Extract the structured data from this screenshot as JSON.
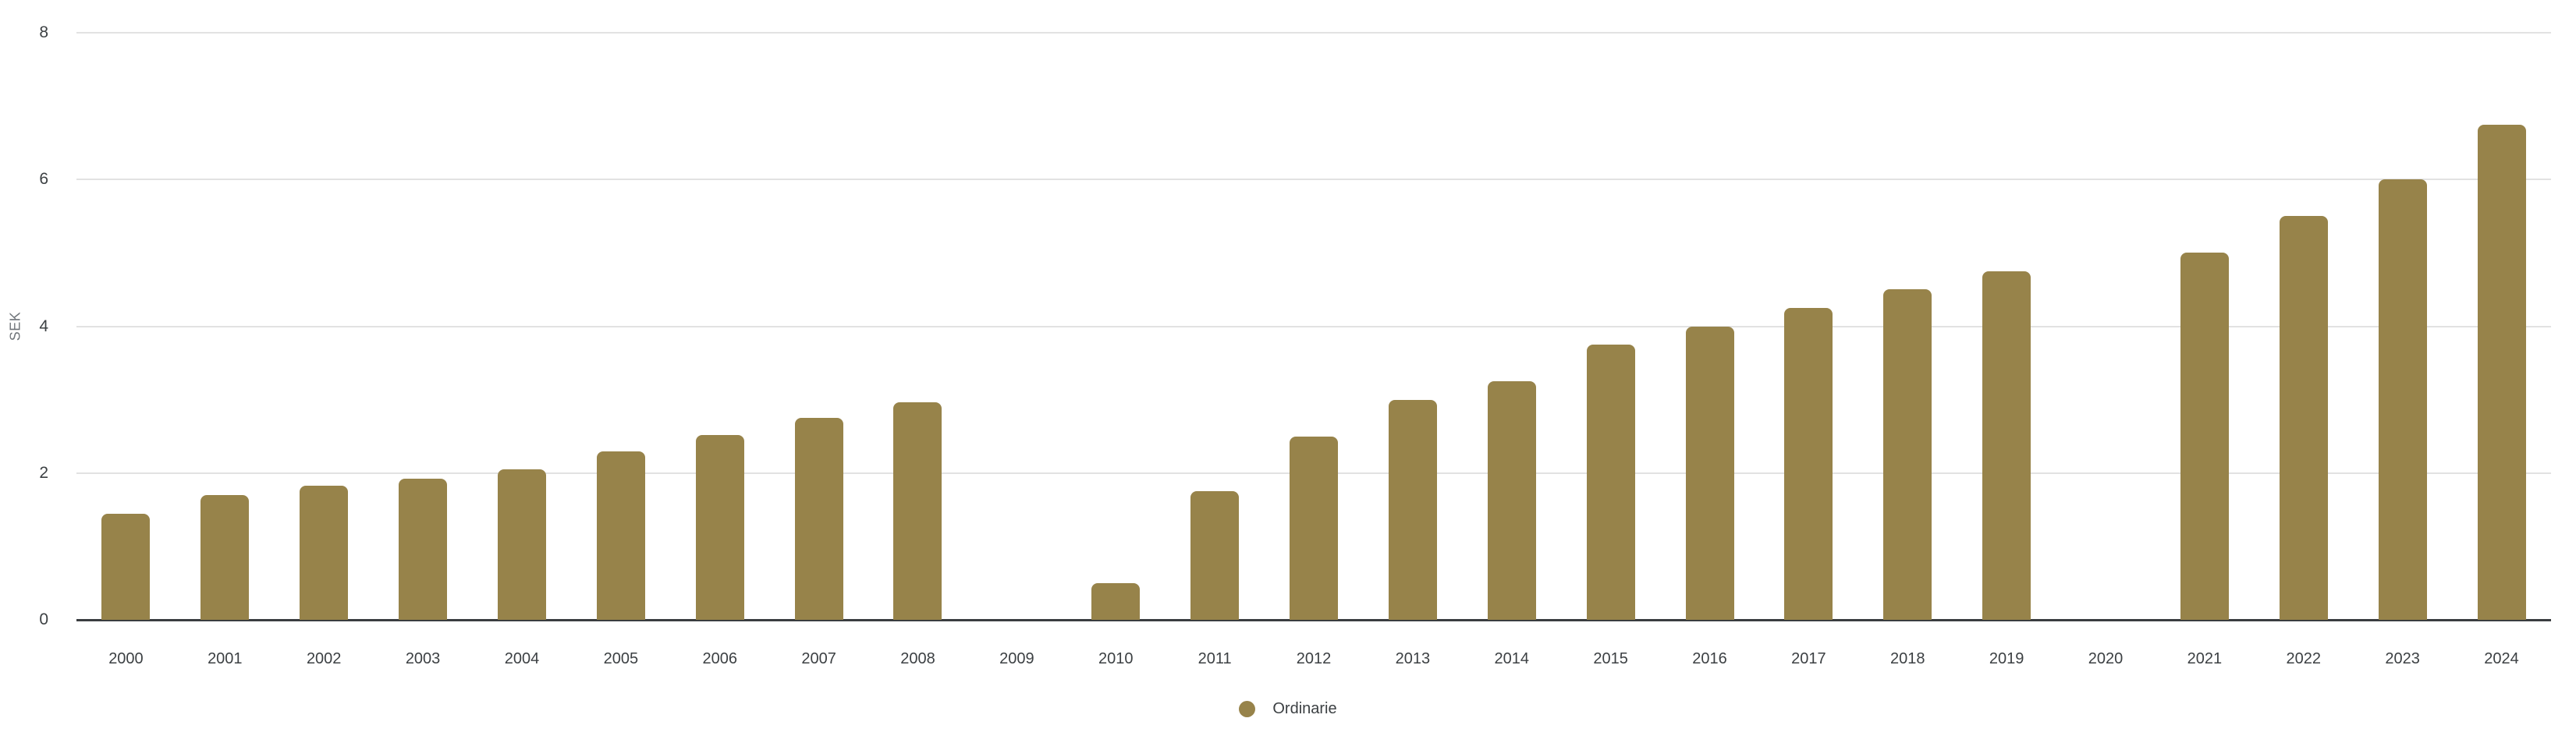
{
  "chart": {
    "y_axis_label": "SEK",
    "legend": {
      "label": "Ordinarie"
    }
  },
  "colors": {
    "bar": "#97834A",
    "gridline": "#e2e2e2",
    "axis_line": "#3a3d40",
    "tick_text": "#3c4043",
    "axis_label_text": "#70757a",
    "background": "#ffffff"
  },
  "chart_data": {
    "type": "bar",
    "title": "",
    "xlabel": "",
    "ylabel": "SEK",
    "categories": [
      2000,
      2001,
      2002,
      2003,
      2004,
      2005,
      2006,
      2007,
      2008,
      2009,
      2010,
      2011,
      2012,
      2013,
      2014,
      2015,
      2016,
      2017,
      2018,
      2019,
      2020,
      2021,
      2022,
      2023,
      2024
    ],
    "series": [
      {
        "name": "Ordinarie",
        "color": "#97834A",
        "values": [
          1.45,
          1.7,
          1.83,
          1.92,
          2.05,
          2.29,
          2.52,
          2.75,
          2.96,
          0,
          0.5,
          1.75,
          2.5,
          3.0,
          3.25,
          3.75,
          4.0,
          4.25,
          4.5,
          4.75,
          0,
          5.0,
          5.5,
          6.0,
          6.75
        ]
      }
    ],
    "ylim": [
      0,
      8
    ],
    "yticks": [
      0,
      2,
      4,
      6,
      8
    ],
    "grid": true,
    "legend_position": "bottom-center",
    "units": "SEK"
  },
  "layout_values": {
    "note_visible_text_only": true
  }
}
